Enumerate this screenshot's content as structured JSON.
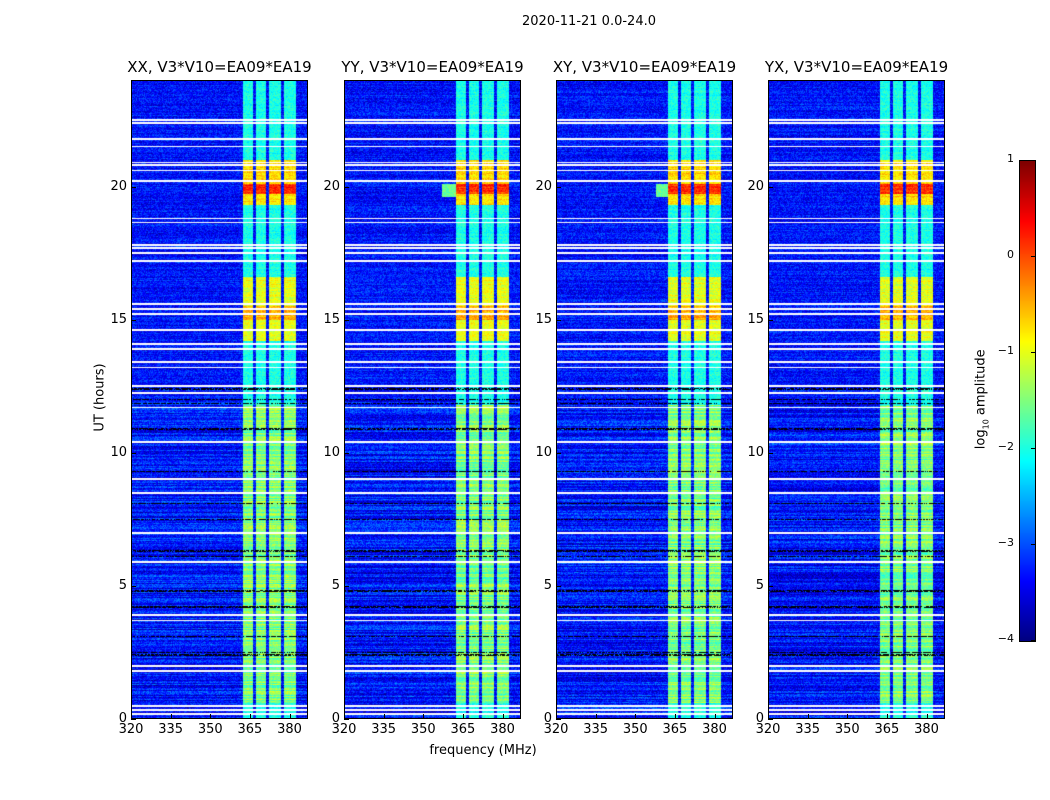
{
  "chart_data": {
    "type": "heatmap",
    "title": "2020-11-21 0.0-24.0",
    "xlabel": "frequency (MHz)",
    "ylabel": "UT (hours)",
    "xlim": [
      320,
      387
    ],
    "ylim": [
      0,
      24
    ],
    "xticks": [
      "320",
      "335",
      "350",
      "365",
      "380"
    ],
    "xtick_values": [
      320,
      335,
      350,
      365,
      380
    ],
    "yticks": [
      "0",
      "5",
      "10",
      "15",
      "20"
    ],
    "ytick_values": [
      0,
      5,
      10,
      15,
      20
    ],
    "colorbar": {
      "label": "log10 amplitude",
      "label_main": "log",
      "label_sub": "10",
      "label_rest": " amplitude",
      "colormap": "jet",
      "range": [
        -4,
        1
      ],
      "ticks": [
        "−4",
        "−3",
        "−2",
        "−1",
        "0",
        "1"
      ],
      "tick_values": [
        -4,
        -3,
        -2,
        -1,
        0,
        1
      ]
    },
    "panels": [
      {
        "title": "XX, V3*V10=EA09*EA19",
        "event_fmin": 362.5
      },
      {
        "title": "YY, V3*V10=EA09*EA19",
        "event_fmin": 357
      },
      {
        "title": "XY, V3*V10=EA09*EA19",
        "event_fmin": 358
      },
      {
        "title": "YX, V3*V10=EA09*EA19",
        "event_fmin": 362.5
      }
    ],
    "background_level": -3.3,
    "rfi_band_MHz": [
      362.5,
      382.5
    ],
    "rfi_band_gaps_MHz": [
      366.8,
      371.7,
      377.4
    ],
    "rfi_band_level": -2.0,
    "events": [
      {
        "hours": [
          19.3,
          21.0
        ],
        "level": -0.7
      },
      {
        "hours": [
          19.7,
          20.1
        ],
        "level": 0.15
      },
      {
        "hours": [
          14.2,
          16.6
        ],
        "level": -1.0
      },
      {
        "hours": [
          15.0,
          15.5
        ],
        "level": -0.5
      },
      {
        "hours": [
          0.6,
          11.8
        ],
        "level": -1.5
      }
    ],
    "flagged_hours_white": [
      22.5,
      22.4,
      21.8,
      21.5,
      20.9,
      20.8,
      20.6,
      20.2,
      18.8,
      18.65,
      17.8,
      17.7,
      17.5,
      17.2,
      15.6,
      15.4,
      15.2,
      14.6,
      14.1,
      13.9,
      13.4,
      13.2,
      12.5,
      12.25,
      11.7,
      10.4,
      9.0,
      8.5,
      7.0,
      5.9,
      3.9,
      3.7,
      2.0,
      1.8,
      0.5,
      0.35,
      0.2
    ],
    "flagged_hours_black": [
      12.4,
      12.0,
      11.85,
      10.9,
      9.3,
      8.1,
      7.5,
      6.3,
      6.1,
      4.8,
      4.2,
      3.1,
      2.5,
      2.4
    ]
  }
}
